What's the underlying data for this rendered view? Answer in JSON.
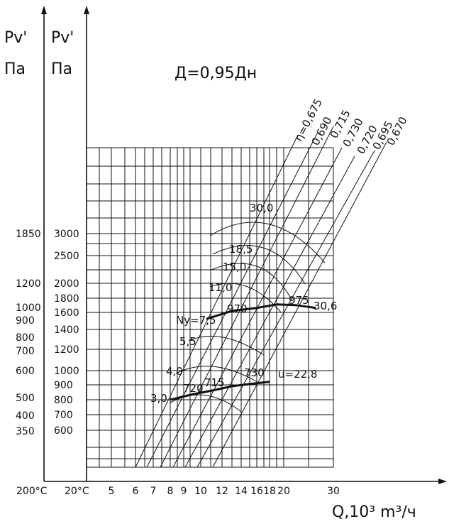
{
  "chart_data": {
    "type": "line",
    "title": "Д=0,95Дн",
    "axis_left_outer": {
      "label_top": "Pv'",
      "label_bottom": "Па",
      "unit_note": "200°C"
    },
    "axis_left_inner": {
      "label_top": "Pv'",
      "label_bottom": "Па",
      "unit_note": "20°C"
    },
    "xlabel": "Q,10³ m³/ч",
    "x_ticks": [
      "5",
      "6",
      "7",
      "8",
      "9",
      "10",
      "12",
      "14",
      "16",
      "18",
      "20",
      "30"
    ],
    "x_scale": "log",
    "xlim": [
      4.2,
      30
    ],
    "ylim_inner": [
      400,
      5600
    ],
    "y_scale": "log",
    "y_ticks_inner": [
      "3000",
      "2500",
      "2000",
      "1800",
      "1600",
      "1400",
      "1200",
      "1000",
      "900",
      "800",
      "700",
      "600"
    ],
    "y_ticks_outer": [
      "1850",
      "1200",
      "1000",
      "900",
      "800",
      "700",
      "600",
      "500",
      "400",
      "350"
    ],
    "efficiency_labels": [
      "η=0,675",
      "0,690",
      "0,715",
      "0,730",
      "0,720",
      "0,695",
      "0,670"
    ],
    "power_labels": [
      "30,0",
      "18,5",
      "15,0",
      "11,0",
      "Ny=7,5",
      "5,5",
      "4,0",
      "3,0"
    ],
    "series": [
      {
        "name": "u=30,6",
        "label": "30,6",
        "speed_labels": [
          "970",
          "975"
        ],
        "x": [
          10.5,
          13,
          16,
          19,
          22,
          26
        ],
        "y": [
          1520,
          1620,
          1660,
          1710,
          1700,
          1660
        ]
      },
      {
        "name": "u=22,8",
        "label": "u=22,8",
        "speed_labels": [
          "720",
          "715",
          "730"
        ],
        "x": [
          8,
          9.5,
          11,
          13,
          15,
          18
        ],
        "y": [
          800,
          835,
          860,
          890,
          905,
          920
        ]
      }
    ],
    "grid": true
  }
}
